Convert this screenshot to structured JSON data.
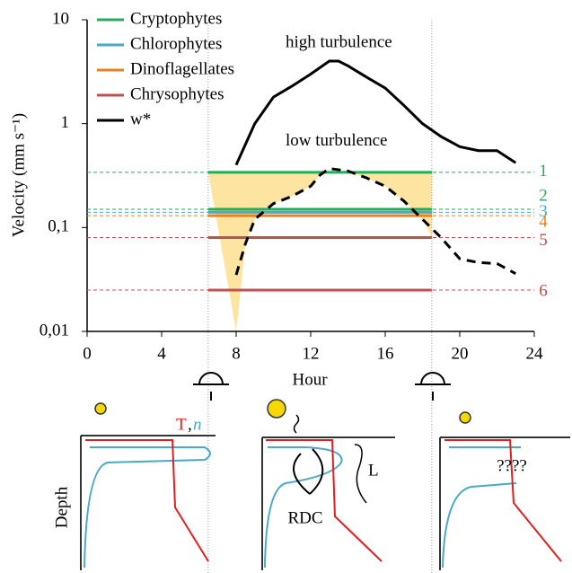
{
  "chart_data": {
    "type": "line",
    "x_label": "Hour",
    "y_label": "Velocity (mm s⁻¹)",
    "log_y": true,
    "xlim": [
      0,
      24
    ],
    "xticks": [
      0,
      4,
      8,
      12,
      16,
      20,
      24
    ],
    "ylim": [
      0.01,
      10
    ],
    "yticks": [
      {
        "value": 0.01,
        "label": "0,01"
      },
      {
        "value": 0.1,
        "label": "0,1"
      },
      1,
      10
    ],
    "sunrise": 6.5,
    "sunset": 18.5,
    "shade_color": "#fde4a0",
    "series": [
      {
        "name": "Cryptophytes",
        "color": "#1fae5a",
        "kind": "level",
        "values": [
          0.34,
          0.15
        ],
        "line_labels": [
          "1",
          "2"
        ]
      },
      {
        "name": "Chlorophytes",
        "color": "#4aa8c8",
        "kind": "level",
        "values": [
          0.14
        ],
        "line_labels": [
          "3"
        ]
      },
      {
        "name": "Dinoflagellates",
        "color": "#e8821e",
        "kind": "level",
        "values": [
          0.13
        ],
        "line_labels": [
          "4"
        ]
      },
      {
        "name": "Chrysophytes",
        "color": "#c0504d",
        "kind": "level",
        "values": [
          0.08,
          0.025
        ],
        "line_labels": [
          "5",
          "6"
        ]
      },
      {
        "name": "w*",
        "color": "#000000",
        "kind": "curve",
        "annotation": "high turbulence",
        "x": [
          8,
          9,
          10,
          11,
          12,
          13,
          13.5,
          14,
          15,
          16,
          17,
          18,
          19,
          20,
          21,
          22,
          23
        ],
        "values": [
          0.4,
          1.0,
          1.8,
          2.3,
          3.0,
          4.0,
          4.0,
          3.6,
          2.8,
          2.2,
          1.5,
          1.0,
          0.75,
          0.6,
          0.55,
          0.55,
          0.42
        ]
      },
      {
        "color": "#000000",
        "kind": "curve",
        "dashed": true,
        "annotation": "low turbulence",
        "x": [
          8,
          8.5,
          9,
          10,
          11,
          12,
          12.5,
          13,
          14,
          15,
          16,
          17,
          18,
          19,
          20,
          21,
          22,
          23
        ],
        "values": [
          0.035,
          0.07,
          0.12,
          0.17,
          0.2,
          0.25,
          0.32,
          0.37,
          0.35,
          0.3,
          0.25,
          0.18,
          0.12,
          0.08,
          0.05,
          0.046,
          0.045,
          0.036
        ]
      }
    ]
  },
  "diagram": {
    "depth_label": "Depth",
    "t_label": "T",
    "n_label": "n",
    "separator": ",",
    "l_label": "L",
    "rdc_label": "RDC",
    "unknown_label": "????"
  }
}
